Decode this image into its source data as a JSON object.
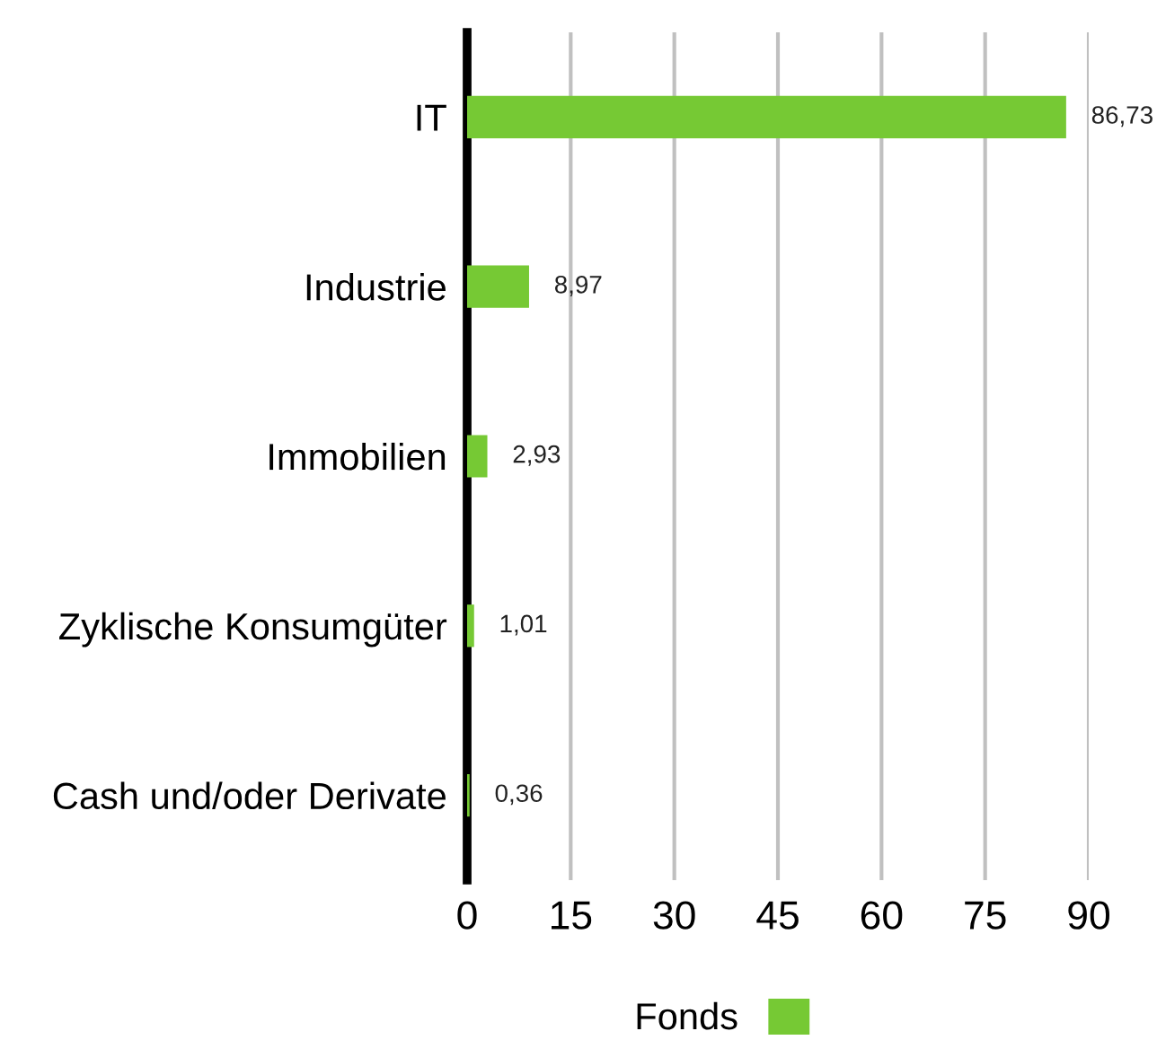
{
  "chart_data": {
    "type": "bar",
    "orientation": "horizontal",
    "categories": [
      "IT",
      "Industrie",
      "Immobilien",
      "Zyklische Konsumgüter",
      "Cash und/oder Derivate"
    ],
    "series": [
      {
        "name": "Fonds",
        "color": "#76c934",
        "values": [
          86.73,
          8.97,
          2.93,
          1.01,
          0.36
        ]
      }
    ],
    "value_labels": [
      "86,73",
      "8,97",
      "2,93",
      "1,01",
      "0,36"
    ],
    "xlim": [
      0,
      90
    ],
    "xticks": [
      0,
      15,
      30,
      45,
      60,
      75,
      90
    ],
    "grid": "x",
    "legend": "bottom"
  }
}
